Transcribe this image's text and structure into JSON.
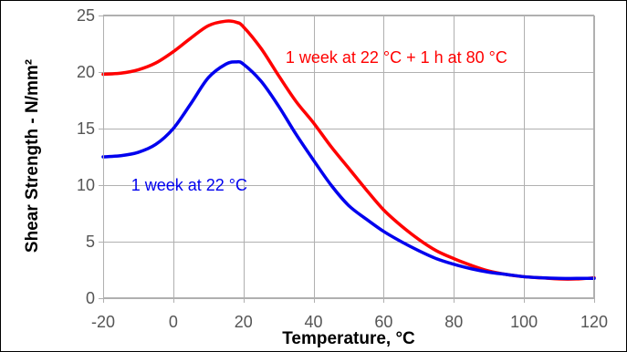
{
  "chart_data": {
    "type": "line",
    "title": "",
    "xlabel": "Temperature, °C",
    "ylabel": "Shear Strength - N/mm²",
    "xlim": [
      -20,
      120
    ],
    "ylim": [
      0,
      25
    ],
    "xticks": [
      -20,
      0,
      20,
      40,
      60,
      80,
      100,
      120
    ],
    "yticks": [
      0,
      5,
      10,
      15,
      20,
      25
    ],
    "grid": true,
    "legend": "none",
    "series": [
      {
        "name": "1 week at 22 °C + 1 h at 80 °C",
        "color": "#ff0000",
        "x": [
          -20,
          -15,
          -10,
          -5,
          0,
          5,
          10,
          15,
          18,
          20,
          25,
          30,
          35,
          40,
          45,
          50,
          55,
          60,
          65,
          70,
          75,
          80,
          85,
          90,
          95,
          100,
          105,
          110,
          115,
          120
        ],
        "y": [
          19.8,
          19.9,
          20.2,
          20.8,
          21.8,
          23.0,
          24.1,
          24.5,
          24.4,
          24.0,
          22.1,
          19.7,
          17.4,
          15.5,
          13.4,
          11.5,
          9.6,
          7.8,
          6.4,
          5.2,
          4.2,
          3.5,
          2.9,
          2.4,
          2.1,
          1.9,
          1.8,
          1.7,
          1.7,
          1.8
        ]
      },
      {
        "name": "1 week at 22 °C",
        "color": "#0000ee",
        "x": [
          -20,
          -15,
          -10,
          -5,
          0,
          5,
          10,
          15,
          18,
          20,
          25,
          30,
          35,
          40,
          45,
          50,
          55,
          60,
          65,
          70,
          75,
          80,
          85,
          90,
          95,
          100,
          105,
          110,
          115,
          120
        ],
        "y": [
          12.5,
          12.6,
          12.9,
          13.6,
          15.0,
          17.2,
          19.5,
          20.7,
          20.9,
          20.7,
          19.2,
          17.0,
          14.5,
          12.2,
          10.0,
          8.2,
          7.0,
          5.9,
          5.0,
          4.2,
          3.5,
          3.0,
          2.6,
          2.3,
          2.1,
          1.9,
          1.8,
          1.75,
          1.75,
          1.75
        ]
      }
    ],
    "annotations": [
      {
        "text": "1 week at 22 °C + 1 h at 80 °C",
        "color": "#ff0000",
        "x": 32,
        "y": 20.8
      },
      {
        "text": "1 week at 22 °C",
        "color": "#0000ee",
        "x": -12,
        "y": 9.5
      }
    ]
  }
}
